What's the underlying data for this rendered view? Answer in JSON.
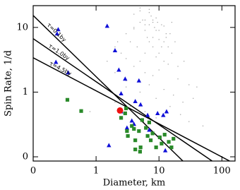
{
  "chart_data": {
    "type": "scatter",
    "x_label": "Diameter, km",
    "y_label": "Spin Rate, 1/d",
    "xlog": true,
    "ylog": true,
    "xlim": [
      0.1,
      162
    ],
    "ylim": [
      0.086,
      21.7
    ],
    "xticks": [
      {
        "value": 0.1,
        "label": "0"
      },
      1,
      10,
      100
    ],
    "yticks": [
      {
        "value": 0.1,
        "label": "0"
      },
      1,
      10
    ],
    "series": [
      {
        "color": "#9a9a9a",
        "marker": "dot",
        "x": [
          3,
          4,
          5,
          6,
          7,
          8,
          9,
          10,
          12,
          15,
          4.5,
          5.5,
          6.5,
          7.5,
          8.5,
          9.5,
          11,
          13,
          3.5,
          2.5,
          5,
          6,
          7,
          8,
          9,
          10,
          12,
          14,
          16,
          20,
          4,
          5,
          6,
          7,
          8,
          9,
          11,
          13,
          18,
          25,
          2,
          3,
          4,
          6,
          8,
          10,
          14,
          20,
          30,
          40,
          1.5,
          2,
          3,
          5,
          7,
          9,
          12,
          17,
          24,
          35,
          0.8,
          1.2,
          2,
          3.5,
          6,
          9,
          15,
          22,
          30,
          50,
          5,
          6,
          7,
          8,
          10,
          4,
          3,
          12,
          16,
          2.2
        ],
        "values": [
          8,
          10,
          12,
          9,
          11,
          7,
          14,
          9,
          6,
          8,
          5,
          13,
          7,
          15,
          10,
          12,
          5,
          7,
          6,
          4,
          3,
          4,
          6,
          5,
          3.5,
          4,
          3,
          5,
          4,
          2.5,
          16,
          18,
          13,
          17,
          12,
          9,
          11,
          8,
          6,
          3,
          2,
          1.5,
          2.5,
          2,
          1.8,
          2.2,
          2.7,
          1.6,
          1.3,
          1.2,
          3,
          5,
          1.2,
          1,
          1.3,
          0.8,
          1.1,
          0.9,
          0.7,
          0.8,
          0.5,
          1.5,
          0.7,
          0.6,
          0.5,
          0.4,
          0.6,
          0.45,
          0.35,
          0.3,
          20,
          11,
          19,
          13,
          6.5,
          9.5,
          3.3,
          10.5,
          12,
          6
        ]
      },
      {
        "color": "#1010d8",
        "marker": "triangle",
        "x": [
          0.24,
          0.25,
          0.36,
          0.23,
          1.5,
          2.0,
          2.3,
          2.9,
          2.5,
          4.2,
          4.8,
          5.1,
          1.6,
          2.5,
          3.1,
          4.0,
          7.0,
          9.5,
          11.7,
          13.2,
          12.6,
          6.6,
          3.7
        ],
        "values": [
          8.0,
          9.3,
          2.0,
          2.9,
          10.5,
          4.4,
          2.2,
          1.6,
          0.95,
          0.72,
          1.5,
          0.64,
          0.15,
          0.5,
          0.28,
          0.32,
          0.26,
          0.47,
          0.44,
          0.5,
          0.125,
          0.44,
          0.36
        ]
      },
      {
        "color": "#2a8a2a",
        "marker": "square",
        "x": [
          0.35,
          0.58,
          2.5,
          2.9,
          3.1,
          3.2,
          3.7,
          4.0,
          4.2,
          4.8,
          5.1,
          6.2,
          6.6,
          7.0,
          7.4,
          7.9,
          9.0,
          10.3,
          11,
          12.3,
          14.3,
          15.8,
          17,
          4.2,
          5.0,
          3.0,
          5.4
        ],
        "values": [
          0.76,
          0.51,
          0.4,
          0.47,
          0.25,
          0.21,
          0.3,
          0.27,
          0.18,
          0.25,
          0.14,
          0.28,
          0.21,
          0.34,
          0.18,
          0.23,
          0.14,
          0.2,
          0.16,
          0.22,
          0.17,
          0.14,
          0.19,
          0.13,
          0.12,
          0.56,
          0.37
        ]
      },
      {
        "color": "#ee1111",
        "marker": "circle",
        "x": [
          2.4
        ],
        "values": [
          0.52
        ]
      }
    ],
    "lines": [
      {
        "label": "τ=0.1by",
        "color": "#000000",
        "label_color": "#d42020",
        "x": [
          0.1,
          24
        ],
        "values": [
          15.3,
          0.086
        ]
      },
      {
        "label": "τ=1.0by",
        "color": "#000000",
        "label_color": "#d42020",
        "x": [
          0.1,
          70
        ],
        "values": [
          6.7,
          0.086
        ]
      },
      {
        "label": "τ=4.5by",
        "color": "#000000",
        "label_color": "#d42020",
        "x": [
          0.1,
          133
        ],
        "values": [
          3.4,
          0.086
        ]
      }
    ]
  }
}
